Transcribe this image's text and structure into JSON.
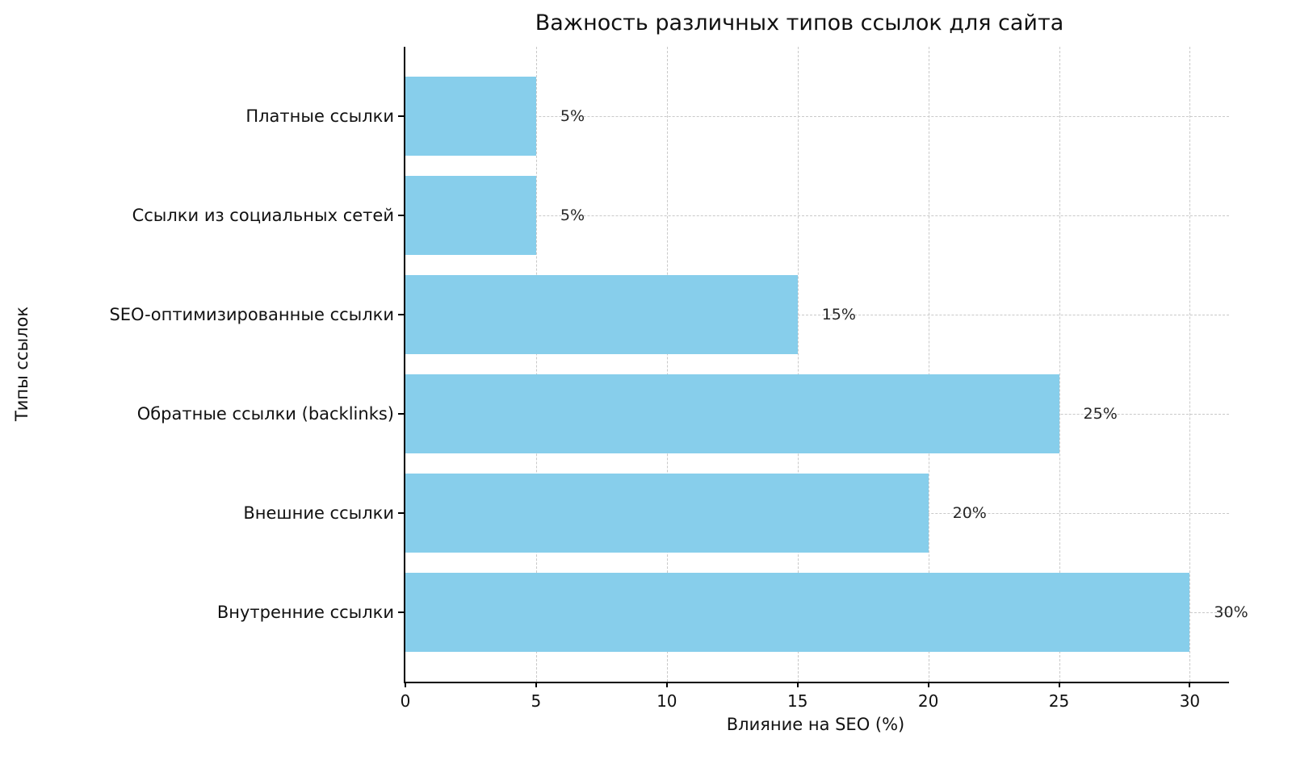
{
  "chart_data": {
    "type": "bar",
    "orientation": "horizontal",
    "title": "Важность различных типов ссылок для сайта",
    "xlabel": "Влияние на SEO (%)",
    "ylabel": "Типы ссылок",
    "categories": [
      "Платные ссылки",
      "Ссылки из социальных сетей",
      "SEO-оптимизированные ссылки",
      "Обратные ссылки (backlinks)",
      "Внешние ссылки",
      "Внутренние ссылки"
    ],
    "values": [
      5,
      5,
      15,
      25,
      20,
      30
    ],
    "value_labels": [
      "5%",
      "5%",
      "15%",
      "25%",
      "20%",
      "30%"
    ],
    "xticks": [
      0,
      5,
      10,
      15,
      20,
      25,
      30
    ],
    "xlim": [
      0,
      31.5
    ],
    "bar_color": "#87CEEB",
    "grid_color": "#c9c9c9",
    "grid_style": "dashed",
    "legend": "none"
  }
}
